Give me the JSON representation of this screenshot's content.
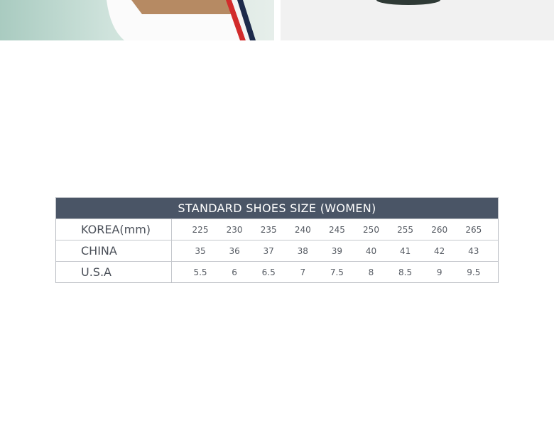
{
  "table": {
    "title": "STANDARD SHOES SIZE (WOMEN)",
    "rows": [
      {
        "label": "KOREA(mm)",
        "values": [
          "225",
          "230",
          "235",
          "240",
          "245",
          "250",
          "255",
          "260",
          "265"
        ]
      },
      {
        "label": "CHINA",
        "values": [
          "35",
          "36",
          "37",
          "38",
          "39",
          "40",
          "41",
          "42",
          "43"
        ]
      },
      {
        "label": "U.S.A",
        "values": [
          "5.5",
          "6",
          "6.5",
          "7",
          "7.5",
          "8",
          "8.5",
          "9",
          "9.5"
        ]
      }
    ]
  }
}
